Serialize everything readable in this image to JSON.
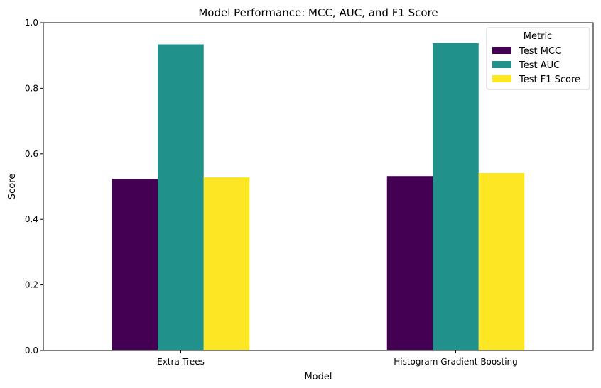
{
  "chart_data": {
    "type": "bar",
    "title": "Model Performance: MCC, AUC, and F1 Score",
    "xlabel": "Model",
    "ylabel": "Score",
    "ylim": [
      0,
      1.0
    ],
    "yticks": [
      "0.0",
      "0.2",
      "0.4",
      "0.6",
      "0.8",
      "1.0"
    ],
    "categories": [
      "Extra Trees",
      "Histogram Gradient Boosting"
    ],
    "series": [
      {
        "name": "Test MCC",
        "color": "#440154",
        "values": [
          0.523,
          0.532
        ]
      },
      {
        "name": "Test AUC",
        "color": "#21918c",
        "values": [
          0.934,
          0.938
        ]
      },
      {
        "name": "Test F1 Score",
        "color": "#fde725",
        "values": [
          0.528,
          0.541
        ]
      }
    ],
    "legend": {
      "title": "Metric",
      "position": "top-right"
    },
    "grid": false
  }
}
